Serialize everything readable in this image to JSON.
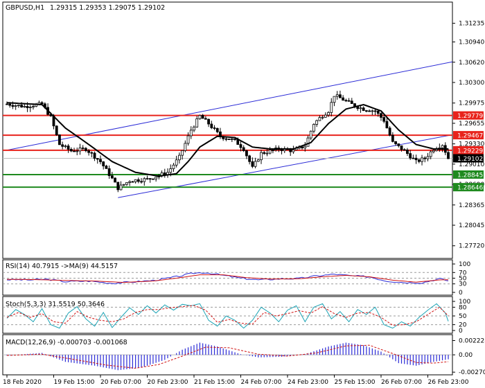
{
  "chart_data": {
    "type": "candlestick",
    "symbol": "GBPUSD,H1",
    "ohlc_header": "1.29315 1.29353 1.29075 1.29102",
    "price_axis": {
      "ylim": [
        1.2752,
        1.3157
      ],
      "ticks": [
        "1.31235",
        "1.30940",
        "1.30620",
        "1.30300",
        "1.29975",
        "1.29655",
        "1.29330",
        "1.29010",
        "1.28690",
        "1.28365",
        "1.28045",
        "1.27720"
      ],
      "tick_values": [
        1.31235,
        1.3094,
        1.3062,
        1.303,
        1.29975,
        1.29655,
        1.2933,
        1.2901,
        1.2869,
        1.28365,
        1.28045,
        1.2772
      ]
    },
    "x_labels": [
      "18 Feb 2020",
      "19 Feb 15:00",
      "20 Feb 07:00",
      "20 Feb 23:00",
      "21 Feb 15:00",
      "24 Feb 07:00",
      "24 Feb 23:00",
      "25 Feb 15:00",
      "26 Feb 07:00",
      "26 Feb 23:00"
    ],
    "x_label_bars": [
      0,
      16,
      32,
      48,
      64,
      80,
      96,
      112,
      128,
      144
    ],
    "bar_count": 152,
    "h_levels": [
      {
        "price": 1.29779,
        "label": "1.29779",
        "color": "#e8231c"
      },
      {
        "price": 1.29467,
        "label": "1.29467",
        "color": "#e8231c"
      },
      {
        "price": 1.29229,
        "label": "1.29229",
        "color": "#e8231c"
      },
      {
        "price": 1.28845,
        "label": "1.28845",
        "color": "#1f8a1f"
      },
      {
        "price": 1.28646,
        "label": "1.28646",
        "color": "#1f8a1f"
      }
    ],
    "current_price": {
      "price": 1.29102,
      "label": "1.29102"
    },
    "channel": {
      "upper": [
        {
          "bar": 0,
          "price": 1.2923
        },
        {
          "bar": 155,
          "price": 1.3065
        }
      ],
      "lower": [
        {
          "bar": 38,
          "price": 1.2848
        },
        {
          "bar": 152,
          "price": 1.2947
        }
      ]
    },
    "price_path": [
      {
        "bar": 0,
        "price": 1.2996
      },
      {
        "bar": 6,
        "price": 1.2992
      },
      {
        "bar": 12,
        "price": 1.2996
      },
      {
        "bar": 15,
        "price": 1.2975
      },
      {
        "bar": 18,
        "price": 1.2932
      },
      {
        "bar": 22,
        "price": 1.2922
      },
      {
        "bar": 27,
        "price": 1.2925
      },
      {
        "bar": 32,
        "price": 1.2905
      },
      {
        "bar": 36,
        "price": 1.2878
      },
      {
        "bar": 38,
        "price": 1.2863
      },
      {
        "bar": 42,
        "price": 1.2875
      },
      {
        "bar": 48,
        "price": 1.2877
      },
      {
        "bar": 55,
        "price": 1.2888
      },
      {
        "bar": 59,
        "price": 1.2912
      },
      {
        "bar": 63,
        "price": 1.2955
      },
      {
        "bar": 66,
        "price": 1.2977
      },
      {
        "bar": 69,
        "price": 1.2965
      },
      {
        "bar": 73,
        "price": 1.2945
      },
      {
        "bar": 78,
        "price": 1.2938
      },
      {
        "bar": 81,
        "price": 1.2925
      },
      {
        "bar": 84,
        "price": 1.2895
      },
      {
        "bar": 87,
        "price": 1.2918
      },
      {
        "bar": 93,
        "price": 1.2925
      },
      {
        "bar": 98,
        "price": 1.2922
      },
      {
        "bar": 102,
        "price": 1.293
      },
      {
        "bar": 105,
        "price": 1.2965
      },
      {
        "bar": 108,
        "price": 1.2978
      },
      {
        "bar": 110,
        "price": 1.2985
      },
      {
        "bar": 112,
        "price": 1.301
      },
      {
        "bar": 115,
        "price": 1.3003
      },
      {
        "bar": 119,
        "price": 1.2993
      },
      {
        "bar": 122,
        "price": 1.2988
      },
      {
        "bar": 126,
        "price": 1.2985
      },
      {
        "bar": 129,
        "price": 1.297
      },
      {
        "bar": 132,
        "price": 1.2935
      },
      {
        "bar": 136,
        "price": 1.2922
      },
      {
        "bar": 140,
        "price": 1.2905
      },
      {
        "bar": 143,
        "price": 1.291
      },
      {
        "bar": 146,
        "price": 1.2925
      },
      {
        "bar": 149,
        "price": 1.2932
      },
      {
        "bar": 151,
        "price": 1.29102
      }
    ],
    "ma_path": [
      {
        "bar": 0,
        "price": 1.2998
      },
      {
        "bar": 12,
        "price": 1.2995
      },
      {
        "bar": 20,
        "price": 1.2958
      },
      {
        "bar": 28,
        "price": 1.2932
      },
      {
        "bar": 36,
        "price": 1.2905
      },
      {
        "bar": 44,
        "price": 1.2888
      },
      {
        "bar": 52,
        "price": 1.2882
      },
      {
        "bar": 58,
        "price": 1.2886
      },
      {
        "bar": 62,
        "price": 1.2905
      },
      {
        "bar": 66,
        "price": 1.2928
      },
      {
        "bar": 72,
        "price": 1.2945
      },
      {
        "bar": 78,
        "price": 1.2943
      },
      {
        "bar": 84,
        "price": 1.2928
      },
      {
        "bar": 90,
        "price": 1.2925
      },
      {
        "bar": 98,
        "price": 1.2925
      },
      {
        "bar": 104,
        "price": 1.2935
      },
      {
        "bar": 110,
        "price": 1.2965
      },
      {
        "bar": 116,
        "price": 1.2988
      },
      {
        "bar": 122,
        "price": 1.2995
      },
      {
        "bar": 128,
        "price": 1.2985
      },
      {
        "bar": 134,
        "price": 1.2955
      },
      {
        "bar": 140,
        "price": 1.2932
      },
      {
        "bar": 146,
        "price": 1.2925
      },
      {
        "bar": 151,
        "price": 1.2925
      }
    ],
    "rsi": {
      "title": "RSI(14) 40.7915 ->MA(9) 44.5157",
      "ticks": [
        "100",
        "70",
        "50",
        "30",
        "0"
      ],
      "tick_values": [
        100,
        70,
        50,
        30,
        0
      ],
      "levels": [
        70,
        50,
        30
      ],
      "ylim": [
        0,
        100
      ],
      "rsi_path": [
        {
          "bar": 0,
          "v": 45
        },
        {
          "bar": 8,
          "v": 44
        },
        {
          "bar": 14,
          "v": 46
        },
        {
          "bar": 20,
          "v": 38
        },
        {
          "bar": 28,
          "v": 40
        },
        {
          "bar": 36,
          "v": 32
        },
        {
          "bar": 42,
          "v": 36
        },
        {
          "bar": 50,
          "v": 42
        },
        {
          "bar": 58,
          "v": 55
        },
        {
          "bar": 64,
          "v": 68
        },
        {
          "bar": 68,
          "v": 70
        },
        {
          "bar": 74,
          "v": 60
        },
        {
          "bar": 80,
          "v": 50
        },
        {
          "bar": 86,
          "v": 44
        },
        {
          "bar": 94,
          "v": 48
        },
        {
          "bar": 100,
          "v": 49
        },
        {
          "bar": 106,
          "v": 58
        },
        {
          "bar": 112,
          "v": 64
        },
        {
          "bar": 118,
          "v": 58
        },
        {
          "bar": 124,
          "v": 55
        },
        {
          "bar": 130,
          "v": 40
        },
        {
          "bar": 136,
          "v": 35
        },
        {
          "bar": 142,
          "v": 34
        },
        {
          "bar": 148,
          "v": 48
        },
        {
          "bar": 151,
          "v": 40.79
        }
      ],
      "ma_path": [
        {
          "bar": 0,
          "v": 46
        },
        {
          "bar": 10,
          "v": 45
        },
        {
          "bar": 20,
          "v": 42
        },
        {
          "bar": 30,
          "v": 40
        },
        {
          "bar": 40,
          "v": 35
        },
        {
          "bar": 50,
          "v": 40
        },
        {
          "bar": 58,
          "v": 50
        },
        {
          "bar": 66,
          "v": 62
        },
        {
          "bar": 74,
          "v": 62
        },
        {
          "bar": 82,
          "v": 52
        },
        {
          "bar": 90,
          "v": 47
        },
        {
          "bar": 100,
          "v": 48
        },
        {
          "bar": 108,
          "v": 55
        },
        {
          "bar": 116,
          "v": 60
        },
        {
          "bar": 124,
          "v": 55
        },
        {
          "bar": 132,
          "v": 43
        },
        {
          "bar": 140,
          "v": 36
        },
        {
          "bar": 148,
          "v": 44
        },
        {
          "bar": 151,
          "v": 44.52
        }
      ]
    },
    "stoch": {
      "title": "Stoch(5,3,3) 31.5519 50.3646",
      "ticks": [
        "100",
        "80",
        "50",
        "20",
        "0"
      ],
      "tick_values": [
        100,
        80,
        50,
        20,
        0
      ],
      "levels": [
        80,
        50,
        20
      ],
      "ylim": [
        0,
        100
      ],
      "main_path": [
        {
          "bar": 0,
          "v": 42
        },
        {
          "bar": 3,
          "v": 72
        },
        {
          "bar": 6,
          "v": 55
        },
        {
          "bar": 9,
          "v": 30
        },
        {
          "bar": 12,
          "v": 75
        },
        {
          "bar": 15,
          "v": 20
        },
        {
          "bar": 18,
          "v": 8
        },
        {
          "bar": 21,
          "v": 60
        },
        {
          "bar": 24,
          "v": 82
        },
        {
          "bar": 27,
          "v": 40
        },
        {
          "bar": 30,
          "v": 15
        },
        {
          "bar": 33,
          "v": 62
        },
        {
          "bar": 36,
          "v": 10
        },
        {
          "bar": 39,
          "v": 45
        },
        {
          "bar": 42,
          "v": 78
        },
        {
          "bar": 45,
          "v": 55
        },
        {
          "bar": 48,
          "v": 85
        },
        {
          "bar": 51,
          "v": 60
        },
        {
          "bar": 54,
          "v": 88
        },
        {
          "bar": 57,
          "v": 70
        },
        {
          "bar": 60,
          "v": 90
        },
        {
          "bar": 63,
          "v": 85
        },
        {
          "bar": 66,
          "v": 92
        },
        {
          "bar": 69,
          "v": 35
        },
        {
          "bar": 72,
          "v": 15
        },
        {
          "bar": 75,
          "v": 50
        },
        {
          "bar": 78,
          "v": 35
        },
        {
          "bar": 81,
          "v": 8
        },
        {
          "bar": 84,
          "v": 35
        },
        {
          "bar": 87,
          "v": 80
        },
        {
          "bar": 90,
          "v": 60
        },
        {
          "bar": 93,
          "v": 30
        },
        {
          "bar": 96,
          "v": 70
        },
        {
          "bar": 99,
          "v": 85
        },
        {
          "bar": 102,
          "v": 30
        },
        {
          "bar": 105,
          "v": 80
        },
        {
          "bar": 108,
          "v": 92
        },
        {
          "bar": 111,
          "v": 40
        },
        {
          "bar": 114,
          "v": 65
        },
        {
          "bar": 117,
          "v": 30
        },
        {
          "bar": 120,
          "v": 72
        },
        {
          "bar": 123,
          "v": 55
        },
        {
          "bar": 126,
          "v": 80
        },
        {
          "bar": 129,
          "v": 20
        },
        {
          "bar": 132,
          "v": 8
        },
        {
          "bar": 135,
          "v": 30
        },
        {
          "bar": 138,
          "v": 15
        },
        {
          "bar": 141,
          "v": 45
        },
        {
          "bar": 144,
          "v": 70
        },
        {
          "bar": 147,
          "v": 92
        },
        {
          "bar": 150,
          "v": 60
        },
        {
          "bar": 151,
          "v": 31.55
        }
      ],
      "signal_path": [
        {
          "bar": 0,
          "v": 45
        },
        {
          "bar": 4,
          "v": 62
        },
        {
          "bar": 8,
          "v": 45
        },
        {
          "bar": 12,
          "v": 58
        },
        {
          "bar": 16,
          "v": 30
        },
        {
          "bar": 20,
          "v": 25
        },
        {
          "bar": 24,
          "v": 65
        },
        {
          "bar": 28,
          "v": 45
        },
        {
          "bar": 32,
          "v": 35
        },
        {
          "bar": 36,
          "v": 30
        },
        {
          "bar": 40,
          "v": 40
        },
        {
          "bar": 44,
          "v": 62
        },
        {
          "bar": 48,
          "v": 72
        },
        {
          "bar": 52,
          "v": 72
        },
        {
          "bar": 56,
          "v": 78
        },
        {
          "bar": 60,
          "v": 82
        },
        {
          "bar": 64,
          "v": 86
        },
        {
          "bar": 68,
          "v": 70
        },
        {
          "bar": 72,
          "v": 28
        },
        {
          "bar": 76,
          "v": 38
        },
        {
          "bar": 80,
          "v": 25
        },
        {
          "bar": 84,
          "v": 22
        },
        {
          "bar": 88,
          "v": 62
        },
        {
          "bar": 92,
          "v": 50
        },
        {
          "bar": 96,
          "v": 58
        },
        {
          "bar": 100,
          "v": 68
        },
        {
          "bar": 104,
          "v": 60
        },
        {
          "bar": 108,
          "v": 82
        },
        {
          "bar": 112,
          "v": 58
        },
        {
          "bar": 116,
          "v": 45
        },
        {
          "bar": 120,
          "v": 60
        },
        {
          "bar": 124,
          "v": 62
        },
        {
          "bar": 128,
          "v": 45
        },
        {
          "bar": 132,
          "v": 18
        },
        {
          "bar": 136,
          "v": 20
        },
        {
          "bar": 140,
          "v": 30
        },
        {
          "bar": 144,
          "v": 55
        },
        {
          "bar": 148,
          "v": 80
        },
        {
          "bar": 151,
          "v": 50.36
        }
      ]
    },
    "macd": {
      "title": "MACD(12,26,9) -0.000703 -0.001068",
      "ticks": [
        "0.002228",
        "0.00",
        "-0.002707"
      ],
      "tick_values": [
        0.002228,
        0,
        -0.002707
      ],
      "ylim": [
        -0.0028,
        0.0025
      ],
      "hist_keys": [
        {
          "bar": 0,
          "v": -0.0001
        },
        {
          "bar": 12,
          "v": 0.0003
        },
        {
          "bar": 20,
          "v": -0.0011
        },
        {
          "bar": 30,
          "v": -0.0017
        },
        {
          "bar": 38,
          "v": -0.0024
        },
        {
          "bar": 46,
          "v": -0.002
        },
        {
          "bar": 54,
          "v": -0.0008
        },
        {
          "bar": 60,
          "v": 0.0008
        },
        {
          "bar": 66,
          "v": 0.0019
        },
        {
          "bar": 72,
          "v": 0.0013
        },
        {
          "bar": 80,
          "v": 0.0001
        },
        {
          "bar": 86,
          "v": -0.0004
        },
        {
          "bar": 94,
          "v": -0.0003
        },
        {
          "bar": 102,
          "v": 0.0001
        },
        {
          "bar": 110,
          "v": 0.0013
        },
        {
          "bar": 116,
          "v": 0.0019
        },
        {
          "bar": 122,
          "v": 0.0015
        },
        {
          "bar": 128,
          "v": 0.0005
        },
        {
          "bar": 134,
          "v": -0.0013
        },
        {
          "bar": 140,
          "v": -0.0017
        },
        {
          "bar": 146,
          "v": -0.0011
        },
        {
          "bar": 151,
          "v": -0.000703
        }
      ],
      "signal_path": [
        {
          "bar": 0,
          "v": -0.0001
        },
        {
          "bar": 12,
          "v": 0.0001
        },
        {
          "bar": 24,
          "v": -0.0008
        },
        {
          "bar": 34,
          "v": -0.0016
        },
        {
          "bar": 44,
          "v": -0.0021
        },
        {
          "bar": 52,
          "v": -0.0015
        },
        {
          "bar": 60,
          "v": -0.0002
        },
        {
          "bar": 68,
          "v": 0.0012
        },
        {
          "bar": 76,
          "v": 0.0011
        },
        {
          "bar": 86,
          "v": 0.0001
        },
        {
          "bar": 96,
          "v": -0.0002
        },
        {
          "bar": 106,
          "v": 0.0003
        },
        {
          "bar": 116,
          "v": 0.0014
        },
        {
          "bar": 124,
          "v": 0.0015
        },
        {
          "bar": 132,
          "v": 0.0002
        },
        {
          "bar": 140,
          "v": -0.0012
        },
        {
          "bar": 146,
          "v": -0.0013
        },
        {
          "bar": 151,
          "v": -0.001068
        }
      ]
    }
  }
}
